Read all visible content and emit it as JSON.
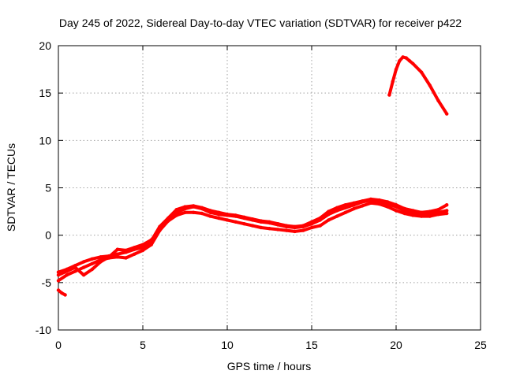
{
  "chart_data": {
    "type": "scatter",
    "title": "Day 245 of 2022, Sidereal Day-to-day VTEC variation (SDTVAR) for receiver p422",
    "xlabel": "GPS time / hours",
    "ylabel": "SDTVAR / TECUs",
    "xlim": [
      0,
      25
    ],
    "ylim": [
      -10,
      20
    ],
    "xticks": [
      "0",
      "5",
      "10",
      "15",
      "20",
      "25"
    ],
    "yticks": [
      "-10",
      "-5",
      "0",
      "5",
      "10",
      "15",
      "20"
    ],
    "grid": true,
    "legend": "none",
    "series_color": "#ff0000",
    "series": [
      {
        "name": "track-a",
        "x": [
          0.0,
          0.5,
          1.0,
          1.5,
          2.0,
          2.5,
          3.0,
          3.5,
          4.0,
          4.5,
          5.0,
          5.5,
          6.0,
          6.5,
          7.0,
          7.5,
          8.0,
          8.5,
          9.0,
          9.5,
          10.0,
          10.5,
          11.0,
          11.5,
          12.0,
          12.5,
          13.0,
          13.5,
          14.0,
          14.5,
          15.0,
          15.5,
          16.0,
          16.5,
          17.0,
          17.5,
          18.0,
          18.5,
          19.0,
          19.5,
          20.0,
          20.5,
          21.0,
          21.5,
          22.0,
          22.5,
          23.0
        ],
        "y": [
          -4.8,
          -4.2,
          -3.8,
          -3.4,
          -3.0,
          -2.6,
          -2.4,
          -2.3,
          -2.4,
          -2.0,
          -1.6,
          -1.0,
          0.5,
          1.6,
          2.4,
          2.8,
          3.0,
          2.8,
          2.4,
          2.2,
          2.1,
          2.0,
          1.8,
          1.6,
          1.4,
          1.3,
          1.1,
          0.9,
          0.8,
          0.9,
          1.2,
          1.6,
          2.2,
          2.6,
          2.9,
          3.2,
          3.5,
          3.7,
          3.6,
          3.3,
          3.0,
          2.6,
          2.4,
          2.3,
          2.3,
          2.4,
          2.6
        ]
      },
      {
        "name": "track-b",
        "x": [
          0.0,
          0.5,
          1.0,
          1.5,
          2.0,
          2.5,
          3.0,
          3.5,
          4.0,
          4.5,
          5.0,
          5.5,
          6.0,
          6.5,
          7.0,
          7.5,
          8.0,
          8.5,
          9.0,
          9.5,
          10.0,
          10.5,
          11.0,
          11.5,
          12.0,
          12.5,
          13.0,
          13.5,
          14.0,
          14.5,
          15.0,
          15.5,
          16.0,
          16.5,
          17.0,
          17.5,
          18.0,
          18.5,
          19.0,
          19.5,
          20.0,
          20.5,
          21.0,
          21.5,
          22.0,
          22.5,
          23.0
        ],
        "y": [
          -4.2,
          -3.8,
          -3.4,
          -4.2,
          -3.6,
          -2.8,
          -2.3,
          -1.5,
          -1.6,
          -1.3,
          -1.0,
          -0.5,
          0.5,
          1.5,
          2.1,
          2.4,
          2.4,
          2.3,
          2.0,
          1.8,
          1.6,
          1.4,
          1.2,
          1.0,
          0.8,
          0.7,
          0.6,
          0.5,
          0.4,
          0.5,
          0.8,
          1.0,
          1.6,
          2.0,
          2.4,
          2.8,
          3.1,
          3.4,
          3.3,
          3.0,
          2.6,
          2.3,
          2.1,
          2.0,
          2.0,
          2.2,
          2.3
        ]
      },
      {
        "name": "track-c",
        "x": [
          0.0,
          0.5,
          1.0,
          1.5,
          2.0,
          2.5,
          3.0,
          3.5,
          4.0,
          4.5,
          5.0,
          5.5,
          6.0,
          6.5,
          7.0,
          7.5,
          8.0,
          8.5,
          9.0,
          9.5,
          10.0,
          10.5,
          11.0,
          11.5,
          12.0,
          12.5,
          13.0,
          13.5,
          14.0,
          14.5,
          15.0,
          15.5,
          16.0,
          16.5,
          17.0,
          17.5,
          18.0,
          18.5,
          19.0,
          19.5,
          20.0,
          20.5,
          21.0,
          21.5,
          22.0,
          22.5,
          23.0
        ],
        "y": [
          -3.9,
          -3.6,
          -3.2,
          -2.8,
          -2.5,
          -2.3,
          -2.2,
          -2.0,
          -1.8,
          -1.5,
          -1.3,
          -0.6,
          0.9,
          1.8,
          2.7,
          3.0,
          3.1,
          2.9,
          2.6,
          2.4,
          2.2,
          2.1,
          1.9,
          1.7,
          1.5,
          1.4,
          1.2,
          1.0,
          0.9,
          1.0,
          1.4,
          1.8,
          2.5,
          2.9,
          3.2,
          3.4,
          3.6,
          3.8,
          3.7,
          3.5,
          3.2,
          2.8,
          2.6,
          2.4,
          2.5,
          2.7,
          3.2
        ]
      },
      {
        "name": "low-segment",
        "x": [
          0.0,
          0.2,
          0.4
        ],
        "y": [
          -5.8,
          -6.1,
          -6.3
        ]
      },
      {
        "name": "high-arc",
        "x": [
          19.6,
          19.8,
          20.0,
          20.2,
          20.4,
          20.6,
          20.8,
          21.0,
          21.5,
          22.0,
          22.5,
          23.0
        ],
        "y": [
          14.8,
          16.2,
          17.5,
          18.4,
          18.8,
          18.7,
          18.4,
          18.1,
          17.2,
          15.8,
          14.2,
          12.8
        ]
      }
    ]
  }
}
